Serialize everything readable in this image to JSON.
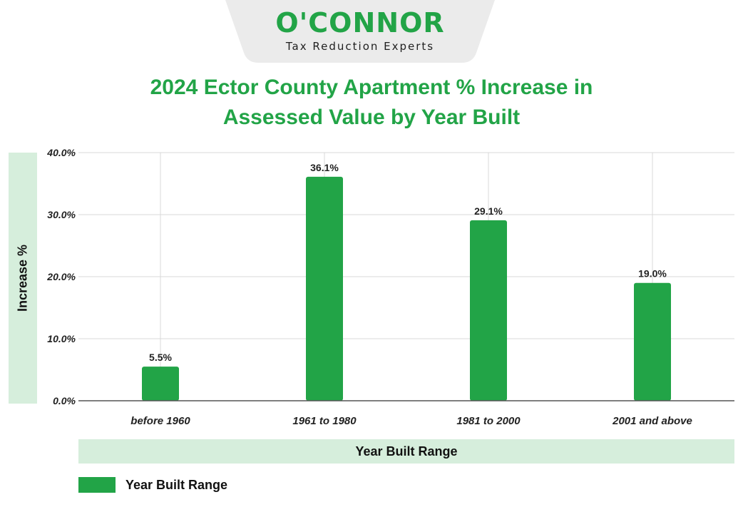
{
  "logo": {
    "wordmark": "O'CONNOR",
    "tagline": "Tax Reduction Experts"
  },
  "colors": {
    "accent": "#22a447",
    "band": "#d6eedc",
    "logo_tab": "#ebebeb"
  },
  "chart_data": {
    "type": "bar",
    "title_lines": [
      "2024 Ector County Apartment % Increase in",
      "Assessed Value by Year Built"
    ],
    "xlabel": "Year Built Range",
    "ylabel": "Increase %",
    "categories": [
      "before 1960",
      "1961 to 1980",
      "1981 to 2000",
      "2001 and above"
    ],
    "series": [
      {
        "name": "Year Built Range",
        "values": [
          5.5,
          36.1,
          29.1,
          19.0
        ],
        "labels": [
          "5.5%",
          "36.1%",
          "29.1%",
          "19.0%"
        ]
      }
    ],
    "ylim": [
      0,
      40
    ],
    "yticks": [
      0,
      10,
      20,
      30,
      40
    ],
    "ytick_labels": [
      "0.0%",
      "10.0%",
      "20.0%",
      "30.0%",
      "40.0%"
    ],
    "grid": true,
    "legend_position": "bottom-left"
  }
}
